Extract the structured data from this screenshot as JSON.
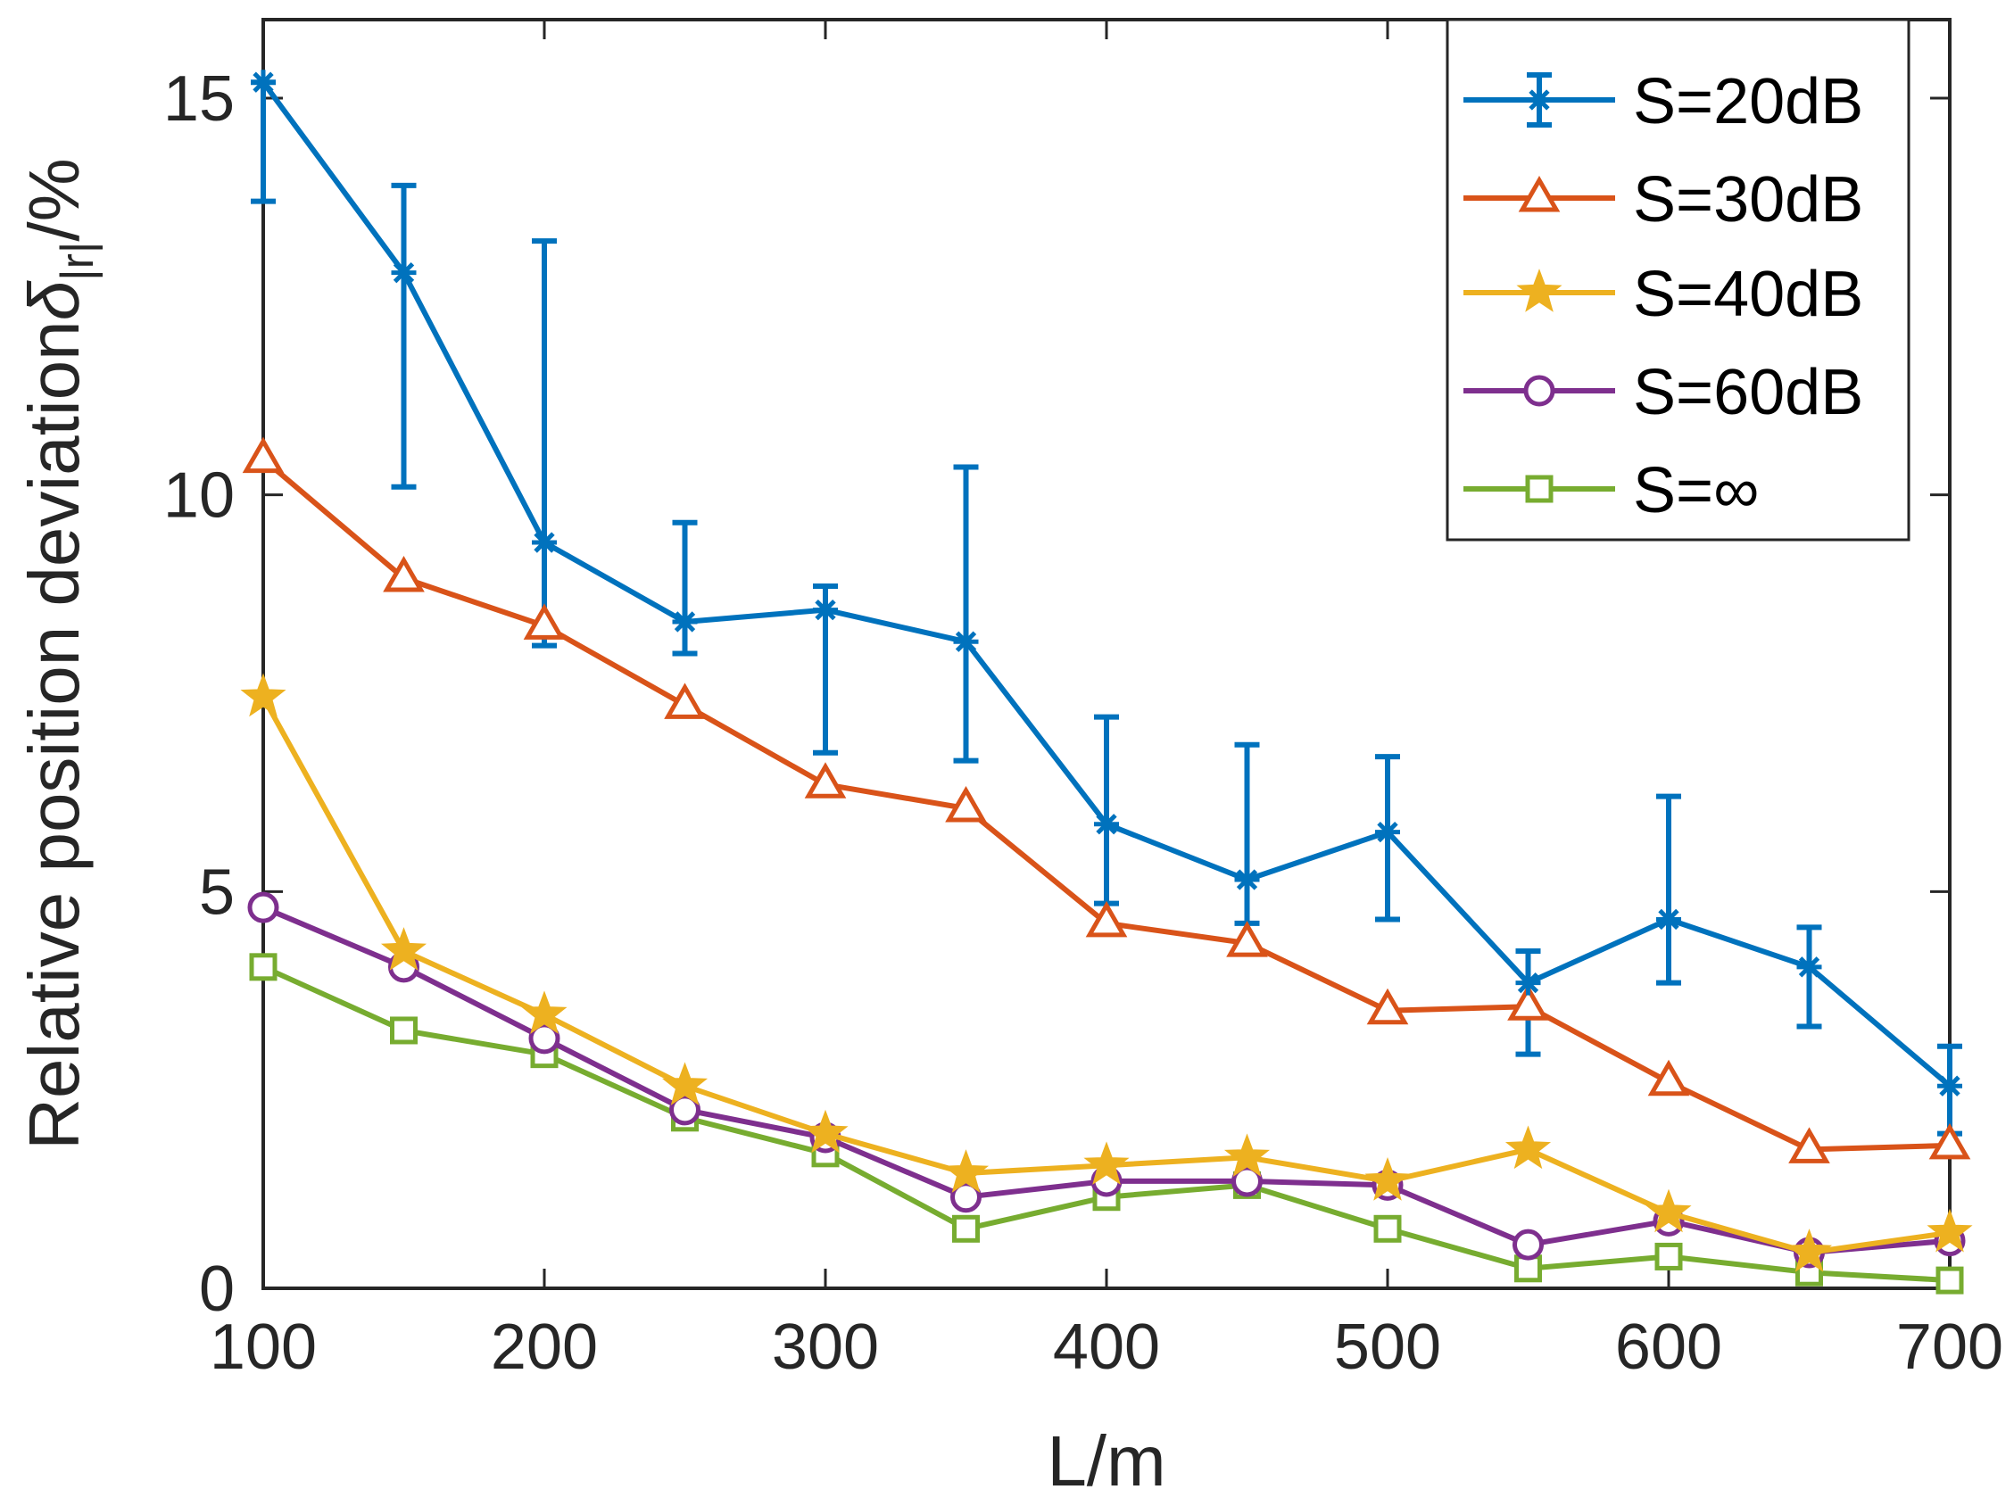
{
  "chart_data": {
    "type": "line",
    "title": "",
    "xlabel": "L/m",
    "ylabel": "Relative position deviation",
    "ylabel_symbol": "δ",
    "ylabel_subscript": "|r|",
    "ylabel_unit": "/%",
    "xlim": [
      100,
      700
    ],
    "ylim": [
      0,
      16
    ],
    "xticks": [
      100,
      200,
      300,
      400,
      500,
      600,
      700
    ],
    "yticks": [
      0,
      5,
      10,
      15
    ],
    "x": [
      100,
      150,
      200,
      250,
      300,
      350,
      400,
      450,
      500,
      550,
      600,
      650,
      700
    ],
    "legend_position": "top-right",
    "series": [
      {
        "name": "S=20dB",
        "color": "#0072BD",
        "marker": "asterisk",
        "values": [
          15.2,
          12.8,
          9.4,
          8.4,
          8.55,
          8.15,
          5.85,
          5.15,
          5.75,
          3.85,
          4.65,
          4.05,
          2.55
        ],
        "err_lower": [
          13.7,
          10.1,
          8.1,
          8.0,
          6.75,
          6.65,
          4.85,
          4.6,
          4.65,
          2.95,
          3.85,
          3.3,
          1.95
        ],
        "err_upper": [
          15.2,
          13.9,
          13.2,
          9.65,
          8.85,
          10.35,
          7.2,
          6.85,
          6.7,
          4.25,
          6.2,
          4.55,
          3.05
        ]
      },
      {
        "name": "S=30dB",
        "color": "#D95319",
        "marker": "triangle",
        "values": [
          10.45,
          8.95,
          8.35,
          7.35,
          6.35,
          6.05,
          4.6,
          4.35,
          3.5,
          3.55,
          2.6,
          1.75,
          1.8
        ]
      },
      {
        "name": "S=40dB",
        "color": "#EDB120",
        "marker": "star",
        "values": [
          7.45,
          4.25,
          3.45,
          2.55,
          1.95,
          1.45,
          1.55,
          1.65,
          1.35,
          1.75,
          0.95,
          0.45,
          0.7
        ]
      },
      {
        "name": "S=60dB",
        "color": "#7E2F8E",
        "marker": "circle",
        "values": [
          4.8,
          4.05,
          3.15,
          2.25,
          1.9,
          1.15,
          1.35,
          1.35,
          1.3,
          0.55,
          0.85,
          0.45,
          0.6
        ]
      },
      {
        "name": "S=∞",
        "color": "#77AC30",
        "marker": "square",
        "values": [
          4.05,
          3.25,
          2.95,
          2.15,
          1.7,
          0.75,
          1.15,
          1.3,
          0.75,
          0.25,
          0.4,
          0.2,
          0.1
        ]
      }
    ]
  }
}
